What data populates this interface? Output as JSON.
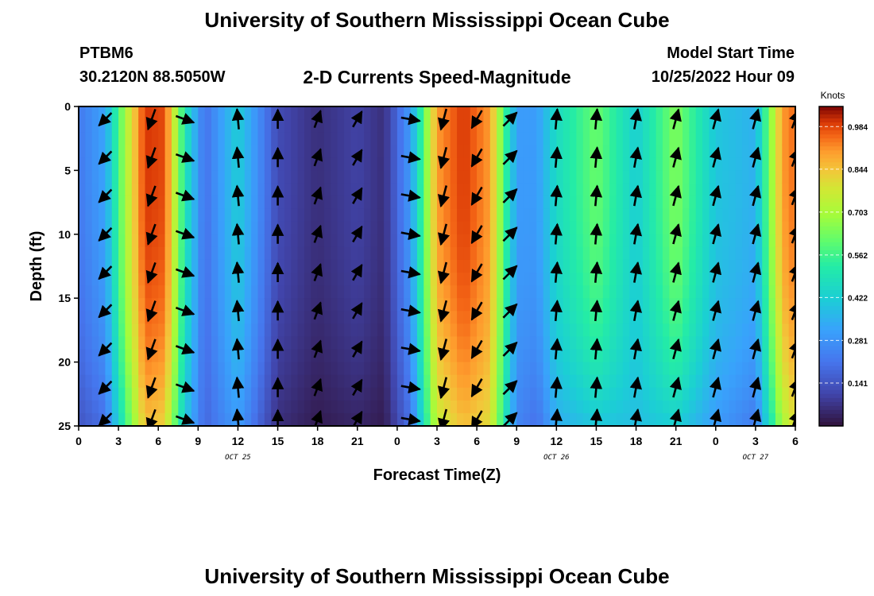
{
  "header": {
    "title": "University of Southern Mississippi Ocean Cube",
    "footer_title": "University of Southern Mississippi Ocean Cube",
    "station": "PTBM6",
    "coords": "30.2120N  88.5050W",
    "subtitle": "2-D Currents Speed-Magnitude",
    "model_start_label": "Model Start Time",
    "model_start_value": "10/25/2022 Hour 09"
  },
  "chart_data": {
    "type": "heatmap",
    "title": "2-D Currents Speed-Magnitude",
    "xlabel": "Forecast Time(Z)",
    "ylabel": "Depth (ft)",
    "x_ticks": [
      "0",
      "3",
      "6",
      "9",
      "12",
      "15",
      "18",
      "21",
      "0",
      "3",
      "6",
      "9",
      "12",
      "15",
      "18",
      "21",
      "0",
      "3",
      "6"
    ],
    "x_range_hours": [
      0,
      54
    ],
    "y_ticks": [
      "0",
      "5",
      "10",
      "15",
      "20",
      "25"
    ],
    "y_range_ft": [
      0,
      25
    ],
    "date_labels": [
      {
        "text": "OCT 25",
        "hour": 12
      },
      {
        "text": "OCT 26",
        "hour": 36
      },
      {
        "text": "OCT 27",
        "hour": 51
      }
    ],
    "colorbar": {
      "label": "Knots",
      "min": 0,
      "max": 1.05,
      "ticks": [
        "0.984",
        "0.844",
        "0.703",
        "0.562",
        "0.422",
        "0.281",
        "0.141"
      ],
      "tick_values": [
        0.984,
        0.844,
        0.703,
        0.562,
        0.422,
        0.281,
        0.141
      ]
    },
    "speed_profile_knots": [
      {
        "hour": 0,
        "surface": 0.22,
        "bottom": 0.14
      },
      {
        "hour": 2,
        "surface": 0.32,
        "bottom": 0.2
      },
      {
        "hour": 3.5,
        "surface": 0.7,
        "bottom": 0.55
      },
      {
        "hour": 5,
        "surface": 1.0,
        "bottom": 0.85
      },
      {
        "hour": 6.5,
        "surface": 0.98,
        "bottom": 0.82
      },
      {
        "hour": 8,
        "surface": 0.5,
        "bottom": 0.4
      },
      {
        "hour": 9.5,
        "surface": 0.2,
        "bottom": 0.18
      },
      {
        "hour": 12,
        "surface": 0.42,
        "bottom": 0.3
      },
      {
        "hour": 15,
        "surface": 0.12,
        "bottom": 0.06
      },
      {
        "hour": 18,
        "surface": 0.06,
        "bottom": 0.02
      },
      {
        "hour": 21,
        "surface": 0.1,
        "bottom": 0.04
      },
      {
        "hour": 23,
        "surface": 0.06,
        "bottom": 0.02
      },
      {
        "hour": 25,
        "surface": 0.3,
        "bottom": 0.2
      },
      {
        "hour": 27,
        "surface": 0.9,
        "bottom": 0.75
      },
      {
        "hour": 29,
        "surface": 1.0,
        "bottom": 0.85
      },
      {
        "hour": 31,
        "surface": 0.9,
        "bottom": 0.8
      },
      {
        "hour": 33,
        "surface": 0.3,
        "bottom": 0.25
      },
      {
        "hour": 34.5,
        "surface": 0.3,
        "bottom": 0.2
      },
      {
        "hour": 36,
        "surface": 0.46,
        "bottom": 0.34
      },
      {
        "hour": 39,
        "surface": 0.62,
        "bottom": 0.4
      },
      {
        "hour": 42,
        "surface": 0.42,
        "bottom": 0.38
      },
      {
        "hour": 45,
        "surface": 0.65,
        "bottom": 0.42
      },
      {
        "hour": 48,
        "surface": 0.4,
        "bottom": 0.3
      },
      {
        "hour": 51,
        "surface": 0.35,
        "bottom": 0.22
      },
      {
        "hour": 53,
        "surface": 0.9,
        "bottom": 0.7
      },
      {
        "hour": 54,
        "surface": 0.95,
        "bottom": 0.8
      }
    ],
    "vector_columns": [
      {
        "hour": 2,
        "dir_deg": 225,
        "len": 0.75
      },
      {
        "hour": 5.5,
        "dir_deg": 200,
        "len": 0.9
      },
      {
        "hour": 8,
        "dir_deg": 110,
        "len": 0.8
      },
      {
        "hour": 12,
        "dir_deg": 355,
        "len": 0.85
      },
      {
        "hour": 15,
        "dir_deg": 0,
        "len": 0.8
      },
      {
        "hour": 18,
        "dir_deg": 20,
        "len": 0.75
      },
      {
        "hour": 21,
        "dir_deg": 30,
        "len": 0.75
      },
      {
        "hour": 25,
        "dir_deg": 100,
        "len": 0.8
      },
      {
        "hour": 27.5,
        "dir_deg": 195,
        "len": 0.9
      },
      {
        "hour": 30,
        "dir_deg": 210,
        "len": 0.85
      },
      {
        "hour": 32.5,
        "dir_deg": 45,
        "len": 0.8
      },
      {
        "hour": 36,
        "dir_deg": 5,
        "len": 0.85
      },
      {
        "hour": 39,
        "dir_deg": 5,
        "len": 0.85
      },
      {
        "hour": 42,
        "dir_deg": 10,
        "len": 0.85
      },
      {
        "hour": 45,
        "dir_deg": 15,
        "len": 0.85
      },
      {
        "hour": 48,
        "dir_deg": 15,
        "len": 0.85
      },
      {
        "hour": 51,
        "dir_deg": 15,
        "len": 0.85
      },
      {
        "hour": 54,
        "dir_deg": 20,
        "len": 0.8
      }
    ]
  }
}
